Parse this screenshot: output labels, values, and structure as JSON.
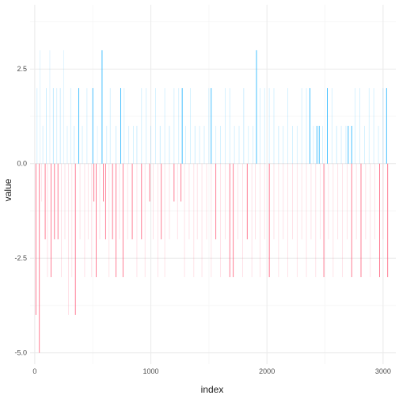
{
  "chart_data": {
    "type": "bar",
    "title": "",
    "xlabel": "index",
    "ylabel": "value",
    "xlim": [
      -40,
      3110
    ],
    "ylim": [
      -5.3,
      4.2
    ],
    "x_ticks": [
      0,
      1000,
      2000,
      3000
    ],
    "y_ticks": [
      -5.0,
      -2.5,
      0.0,
      2.5
    ],
    "x_tick_labels": [
      "0",
      "1000",
      "2000",
      "3000"
    ],
    "y_tick_labels": [
      "-5.0",
      "-2.5",
      "0.0",
      "2.5"
    ],
    "grid": true,
    "legend": "none",
    "colors": {
      "positive": "#00a9ff",
      "negative": "#ff4d6d",
      "grid_major": "#ebebeb",
      "grid_minor": "#f5f5f5"
    },
    "series": [
      {
        "sign": "positive",
        "x": [
          20,
          45,
          70,
          100,
          130,
          160,
          190,
          220,
          250,
          280,
          310,
          340,
          380,
          410,
          450,
          500,
          540,
          580,
          620,
          650,
          700,
          740,
          770,
          810,
          850,
          880,
          920,
          960,
          1000,
          1040,
          1080,
          1120,
          1160,
          1200,
          1240,
          1270,
          1300,
          1340,
          1380,
          1420,
          1460,
          1500,
          1520,
          1560,
          1600,
          1640,
          1680,
          1720,
          1760,
          1800,
          1840,
          1880,
          1910,
          1940,
          1980,
          2020,
          2060,
          2100,
          2140,
          2180,
          2220,
          2260,
          2300,
          2340,
          2370,
          2400,
          2430,
          2450,
          2480,
          2520,
          2560,
          2600,
          2640,
          2680,
          2700,
          2730,
          2760,
          2800,
          2840,
          2880,
          2920,
          2960,
          3000,
          3030
        ],
        "values": [
          2,
          3,
          1,
          2,
          3,
          2,
          2,
          2,
          3,
          1,
          2,
          1,
          2,
          1,
          2,
          2,
          1,
          3,
          1,
          2,
          1,
          2,
          2,
          1,
          1,
          1,
          2,
          2,
          1,
          2,
          1,
          2,
          1,
          2,
          2,
          2,
          1,
          2,
          1,
          1,
          1,
          2,
          2,
          1,
          1,
          2,
          2,
          1,
          1,
          2,
          1,
          1,
          3,
          2,
          2,
          2,
          2,
          1,
          1,
          2,
          1,
          1,
          2,
          2,
          2,
          1,
          1,
          1,
          1,
          2,
          2,
          1,
          1,
          1,
          1,
          1,
          2,
          2,
          1,
          2,
          2,
          1,
          2,
          2
        ],
        "opacity": [
          0.2,
          0.15,
          0.2,
          0.25,
          0.15,
          0.3,
          0.2,
          0.25,
          0.15,
          0.2,
          0.2,
          0.25,
          0.9,
          0.2,
          0.2,
          0.9,
          0.15,
          0.9,
          0.2,
          0.2,
          0.25,
          0.9,
          0.2,
          0.2,
          0.2,
          0.25,
          0.2,
          0.2,
          0.2,
          0.2,
          0.25,
          0.2,
          0.25,
          0.2,
          0.2,
          0.9,
          0.2,
          0.2,
          0.25,
          0.2,
          0.2,
          0.2,
          0.9,
          0.2,
          0.2,
          0.2,
          0.2,
          0.2,
          0.2,
          0.25,
          0.2,
          0.2,
          0.9,
          0.2,
          0.2,
          0.2,
          0.2,
          0.25,
          0.2,
          0.2,
          0.2,
          0.2,
          0.2,
          0.2,
          0.9,
          0.2,
          0.9,
          0.9,
          0.2,
          0.9,
          0.2,
          0.25,
          0.2,
          0.2,
          0.9,
          0.9,
          0.2,
          0.2,
          0.2,
          0.2,
          0.2,
          0.2,
          0.2,
          0.9
        ]
      },
      {
        "sign": "negative",
        "x": [
          10,
          40,
          60,
          90,
          110,
          140,
          170,
          200,
          230,
          260,
          290,
          320,
          350,
          390,
          430,
          460,
          490,
          510,
          530,
          560,
          590,
          610,
          640,
          670,
          700,
          730,
          760,
          800,
          840,
          880,
          920,
          950,
          990,
          1020,
          1060,
          1090,
          1120,
          1160,
          1200,
          1230,
          1260,
          1290,
          1330,
          1370,
          1400,
          1440,
          1480,
          1520,
          1560,
          1600,
          1640,
          1680,
          1710,
          1750,
          1790,
          1830,
          1870,
          1900,
          1940,
          1980,
          2020,
          2060,
          2100,
          2140,
          2180,
          2220,
          2260,
          2300,
          2340,
          2380,
          2420,
          2460,
          2490,
          2530,
          2570,
          2610,
          2650,
          2690,
          2730,
          2770,
          2810,
          2850,
          2890,
          2930,
          2970,
          3000,
          3040
        ],
        "values": [
          -4,
          -5,
          -1,
          -2,
          -3,
          -3,
          -2,
          -2,
          -3,
          -2,
          -4,
          -3,
          -4,
          -2,
          -3,
          -2,
          -3,
          -1,
          -3,
          -2,
          -1,
          -2,
          -3,
          -2,
          -3,
          -2,
          -3,
          -2,
          -2,
          -3,
          -2,
          -3,
          -1,
          -2,
          -3,
          -2,
          -3,
          -2,
          -1,
          -2,
          -1,
          -3,
          -2,
          -3,
          -2,
          -3,
          -2,
          -3,
          -2,
          -3,
          -2,
          -3,
          -3,
          -2,
          -3,
          -2,
          -3,
          -2,
          -3,
          -2,
          -3,
          -2,
          -3,
          -2,
          -3,
          -2,
          -3,
          -2,
          -3,
          -2,
          -3,
          -2,
          -3,
          -2,
          -3,
          -2,
          -3,
          -2,
          -3,
          -2,
          -3,
          -2,
          -3,
          -2,
          -3,
          -2,
          -3
        ],
        "opacity": [
          0.9,
          0.9,
          0.2,
          0.9,
          0.2,
          0.9,
          0.9,
          0.9,
          0.2,
          0.2,
          0.2,
          0.2,
          0.9,
          0.2,
          0.2,
          0.2,
          0.2,
          0.9,
          0.9,
          0.2,
          0.9,
          0.9,
          0.2,
          0.9,
          0.9,
          0.2,
          0.9,
          0.2,
          0.9,
          0.2,
          0.9,
          0.2,
          0.9,
          0.2,
          0.2,
          0.9,
          0.2,
          0.2,
          0.9,
          0.2,
          0.9,
          0.2,
          0.2,
          0.2,
          0.2,
          0.2,
          0.2,
          0.2,
          0.9,
          0.2,
          0.2,
          0.9,
          0.9,
          0.2,
          0.2,
          0.9,
          0.2,
          0.2,
          0.2,
          0.2,
          0.9,
          0.2,
          0.2,
          0.2,
          0.2,
          0.2,
          0.2,
          0.2,
          0.2,
          0.2,
          0.2,
          0.2,
          0.9,
          0.2,
          0.2,
          0.2,
          0.2,
          0.2,
          0.9,
          0.2,
          0.9,
          0.2,
          0.2,
          0.2,
          0.9,
          0.2,
          0.9
        ]
      }
    ]
  }
}
